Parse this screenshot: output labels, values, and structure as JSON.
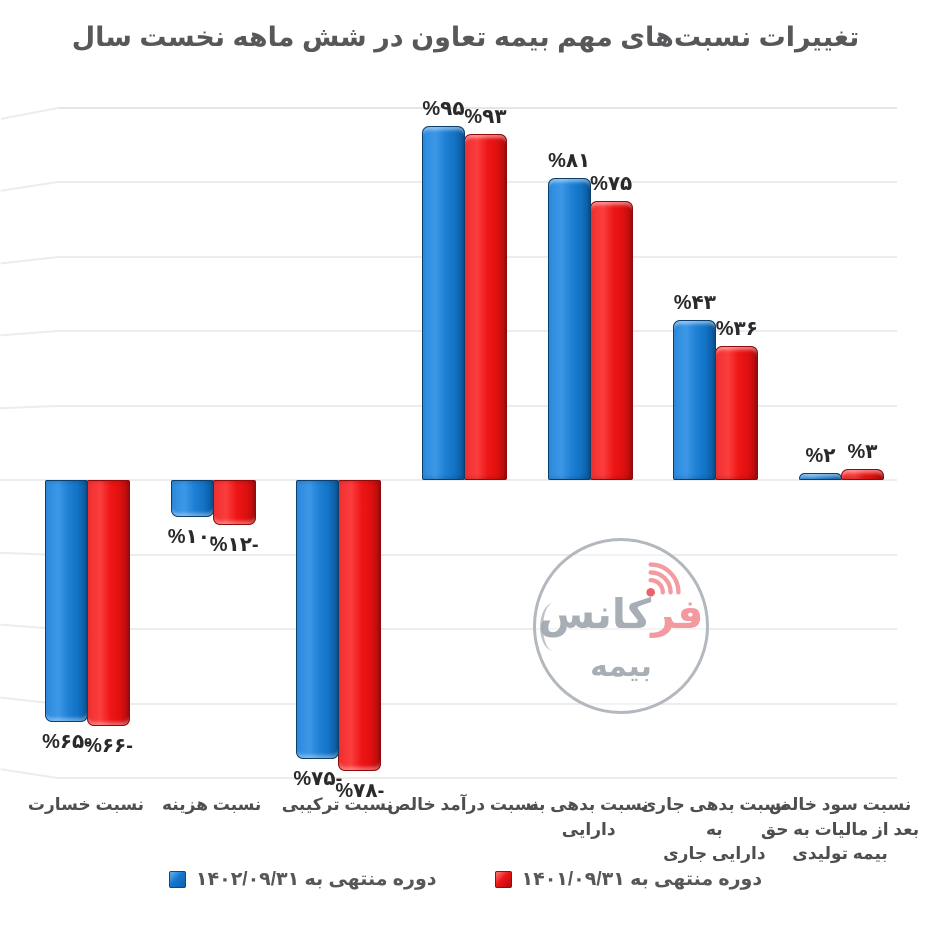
{
  "title": "تغییرات نسبت‌های مهم بیمه تعاون در شش ماهه نخست سال",
  "legend": {
    "items": [
      {
        "label": "دوره منتهی به ۱۴۰۲/۰۹/۳۱",
        "color": "#1478cf"
      },
      {
        "label": "دوره منتهی به ۱۴۰۱/۰۹/۳۱",
        "color": "#ee1414"
      }
    ]
  },
  "watermark": {
    "brand_highlight": "فر",
    "brand_rest": "کانس",
    "subtitle": "بیمه"
  },
  "colors": {
    "series_blue": "#1478cf",
    "series_red": "#ee1414",
    "title_gray": "#58585a",
    "grid": "#ececee",
    "value_label": "#2a2a2d",
    "watermark_pink": "#f29ba0",
    "watermark_gray": "#a8aeb6"
  },
  "chart_data": {
    "type": "bar",
    "direction": "rtl",
    "title": "تغییرات نسبت‌های مهم بیمه تعاون در شش ماهه نخست سال",
    "categories": [
      "نسبت خسارت",
      "نسبت هزینه",
      "نسبت ترکیبی",
      "نسبت درآمد خالص",
      "نسبت بدهی به دارایی",
      "نسبت بدهی جاری به دارایی جاری",
      "نسبت سود خالص بعد از مالیات به حق بیمه تولیدی"
    ],
    "category_lines": [
      [
        "نسبت خسارت"
      ],
      [
        "نسبت هزینه"
      ],
      [
        "نسبت ترکیبی"
      ],
      [
        "نسبت درآمد خالص"
      ],
      [
        "نسبت بدهی به",
        "دارایی"
      ],
      [
        "نسبت بدهی جاری به",
        "دارایی جاری"
      ],
      [
        "نسبت سود خالص",
        "بعد از مالیات به حق",
        "بیمه تولیدی"
      ]
    ],
    "series": [
      {
        "name": "دوره منتهی به ۱۴۰۲/۰۹/۳۱",
        "color": "#1478cf",
        "values": [
          -65,
          -10,
          -75,
          95,
          81,
          43,
          2
        ],
        "labels": [
          "%۶۵-",
          "%۱۰-",
          "%۷۵-",
          "%۹۵",
          "%۸۱",
          "%۴۳",
          "%۲"
        ]
      },
      {
        "name": "دوره منتهی به ۱۴۰۱/۰۹/۳۱",
        "color": "#ee1414",
        "values": [
          -66,
          -12,
          -78,
          93,
          75,
          36,
          3
        ],
        "labels": [
          "%۶۶-",
          "%۱۲-",
          "%۷۸-",
          "%۹۳",
          "%۷۵",
          "%۳۶",
          "%۳"
        ]
      }
    ],
    "ylim": [
      -80,
      100
    ],
    "grid_interval": 20,
    "grid": true,
    "value_labels": true,
    "legend_position": "bottom"
  }
}
